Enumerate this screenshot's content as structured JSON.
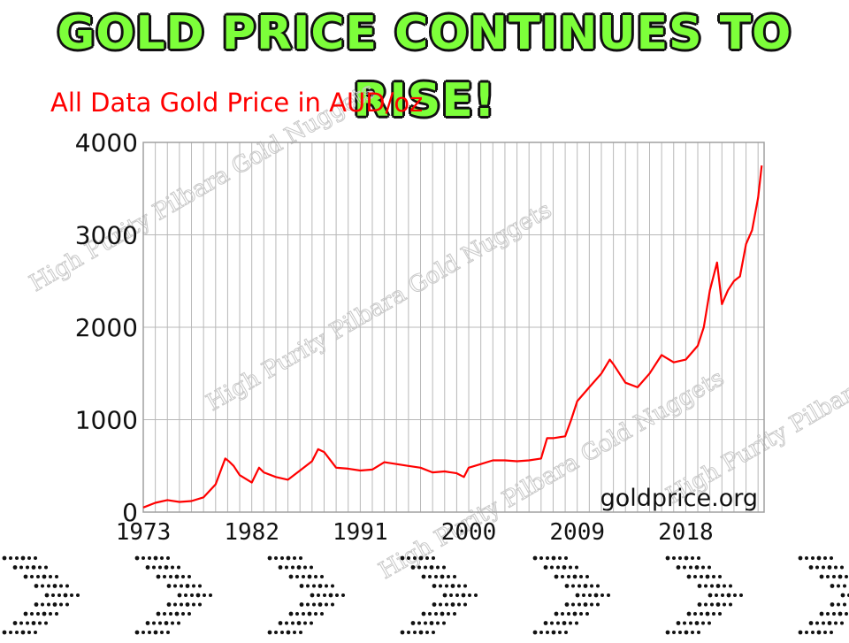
{
  "headline": "GOLD PRICE CONTINUES TO RISE!",
  "colors": {
    "headline": "#7dff3a",
    "line": "#ff0000",
    "title": "#ff0000",
    "grid": "#b8b8b8",
    "watermark": "#c8c8c8"
  },
  "watermarks": [
    "High Purity Pilbara Gold Nuggets",
    "High Purity Pilbara Gold Nuggets",
    "High Purity Pilbara Gold Nuggets",
    "High Purity Pilbara Gold Nuggets"
  ],
  "chart_data": {
    "type": "line",
    "title": "All Data Gold Price in AUD/oz",
    "credit": "goldprice.org",
    "xlim": [
      1973,
      2024.5
    ],
    "ylim": [
      0,
      4000
    ],
    "xticks": [
      1973,
      1982,
      1991,
      2000,
      2009,
      2018
    ],
    "xtick_labels": [
      "1973",
      "1982",
      "1991",
      "2000",
      "2009",
      "2018"
    ],
    "yticks": [
      0,
      1000,
      2000,
      3000,
      4000
    ],
    "ytick_labels": [
      "0",
      "1000",
      "2000",
      "3000",
      "4000"
    ],
    "grid": true,
    "series": [
      {
        "x": [
          1973.0,
          1974.0,
          1975.0,
          1976.0,
          1977.0,
          1978.0,
          1979.0,
          1979.8,
          1980.1,
          1980.5,
          1981.0,
          1982.0,
          1982.6,
          1983.0,
          1984.0,
          1985.0,
          1986.0,
          1987.0,
          1987.5,
          1988.0,
          1989.0,
          1990.0,
          1991.0,
          1992.0,
          1993.0,
          1994.0,
          1995.0,
          1996.0,
          1997.0,
          1998.0,
          1999.0,
          1999.6,
          2000.0,
          2001.0,
          2002.0,
          2003.0,
          2004.0,
          2005.0,
          2006.0,
          2006.5,
          2007.0,
          2008.0,
          2008.5,
          2009.0,
          2010.0,
          2011.0,
          2011.7,
          2012.0,
          2013.0,
          2014.0,
          2015.0,
          2016.0,
          2017.0,
          2018.0,
          2019.0,
          2019.5,
          2020.0,
          2020.6,
          2021.0,
          2021.5,
          2022.0,
          2022.5,
          2023.0,
          2023.5,
          2024.0,
          2024.3
        ],
        "y": [
          50,
          100,
          130,
          110,
          120,
          160,
          300,
          580,
          550,
          500,
          400,
          320,
          480,
          430,
          380,
          350,
          450,
          550,
          680,
          650,
          480,
          470,
          450,
          460,
          540,
          520,
          500,
          480,
          430,
          440,
          420,
          380,
          480,
          520,
          560,
          560,
          550,
          560,
          580,
          800,
          800,
          820,
          1000,
          1200,
          1350,
          1500,
          1650,
          1600,
          1400,
          1350,
          1500,
          1700,
          1620,
          1650,
          1800,
          2000,
          2400,
          2700,
          2250,
          2400,
          2500,
          2550,
          2900,
          3050,
          3400,
          3750
        ]
      }
    ]
  }
}
